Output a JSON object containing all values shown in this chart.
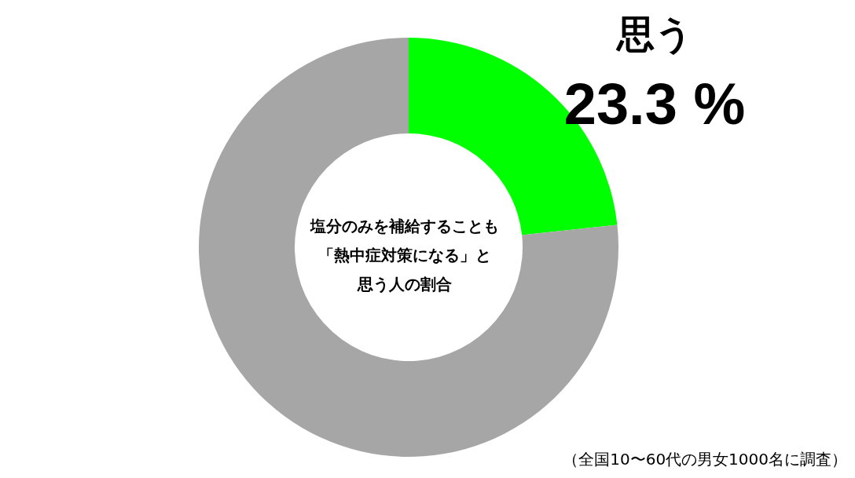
{
  "chart_data": {
    "type": "donut",
    "title": "塩分のみを補給することも「熱中症対策になる」と思う人の割合",
    "categories": [
      "思う",
      null
    ],
    "values": [
      23.3,
      76.7
    ],
    "colors": [
      "#00ff00",
      "#a6a6a6"
    ],
    "value_labels": [
      "23.3 %",
      null
    ],
    "annotations": [
      "（全国10〜60代の男女1000名に調査）"
    ]
  }
}
